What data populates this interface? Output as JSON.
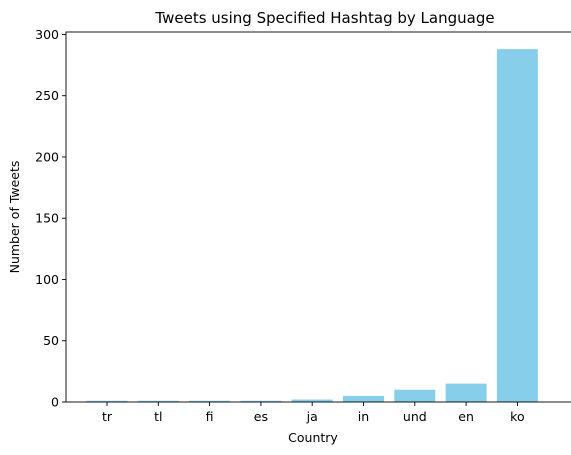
{
  "chart_data": {
    "type": "bar",
    "title": "Tweets using Specified Hashtag by Language",
    "xlabel": "Country",
    "ylabel": "Number of Tweets",
    "categories": [
      "tr",
      "tl",
      "fi",
      "es",
      "ja",
      "in",
      "und",
      "en",
      "ko"
    ],
    "values": [
      1,
      1,
      1,
      1,
      2,
      5,
      10,
      15,
      288
    ],
    "ylim": [
      0,
      302
    ],
    "yticks": [
      0,
      50,
      100,
      150,
      200,
      250,
      300
    ],
    "bar_color": "#87CEEB",
    "grid": false,
    "legend": "none"
  }
}
